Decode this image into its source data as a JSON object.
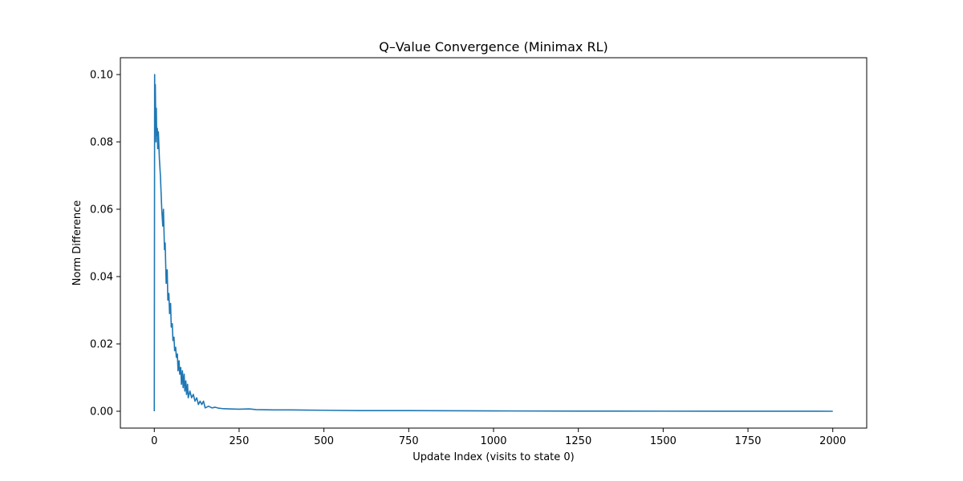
{
  "chart_data": {
    "type": "line",
    "title": "Q–Value Convergence (Minimax RL)",
    "xlabel": "Update Index (visits to state 0)",
    "ylabel": "Norm Difference",
    "xlim": [
      -100,
      2100
    ],
    "ylim": [
      -0.005,
      0.105
    ],
    "xticks": [
      0,
      250,
      500,
      750,
      1000,
      1250,
      1500,
      1750,
      2000
    ],
    "yticks": [
      0.0,
      0.02,
      0.04,
      0.06,
      0.08,
      0.1
    ],
    "ytick_labels": [
      "0.00",
      "0.02",
      "0.04",
      "0.06",
      "0.08",
      "0.10"
    ],
    "grid": false,
    "series": [
      {
        "color": "#1f77b4",
        "x": [
          0,
          1,
          2,
          3,
          5,
          6,
          7,
          9,
          10,
          12,
          15,
          18,
          20,
          22,
          25,
          27,
          30,
          32,
          35,
          38,
          40,
          43,
          45,
          48,
          50,
          53,
          55,
          58,
          60,
          63,
          65,
          68,
          70,
          73,
          75,
          78,
          80,
          83,
          85,
          88,
          90,
          93,
          95,
          98,
          100,
          105,
          110,
          115,
          120,
          125,
          130,
          135,
          140,
          145,
          150,
          160,
          170,
          180,
          190,
          200,
          220,
          250,
          280,
          300,
          350,
          400,
          500,
          600,
          750,
          1000,
          1250,
          1500,
          1750,
          2000
        ],
        "y": [
          0.0,
          0.1,
          0.085,
          0.097,
          0.08,
          0.09,
          0.082,
          0.084,
          0.078,
          0.083,
          0.075,
          0.07,
          0.065,
          0.06,
          0.055,
          0.06,
          0.048,
          0.05,
          0.038,
          0.042,
          0.033,
          0.035,
          0.029,
          0.032,
          0.025,
          0.026,
          0.021,
          0.022,
          0.018,
          0.019,
          0.016,
          0.017,
          0.012,
          0.015,
          0.011,
          0.013,
          0.008,
          0.012,
          0.007,
          0.011,
          0.006,
          0.009,
          0.005,
          0.008,
          0.004,
          0.006,
          0.004,
          0.005,
          0.003,
          0.004,
          0.002,
          0.003,
          0.002,
          0.003,
          0.001,
          0.0015,
          0.001,
          0.0012,
          0.0009,
          0.0008,
          0.0007,
          0.0006,
          0.0007,
          0.0005,
          0.0004,
          0.0004,
          0.0003,
          0.0002,
          0.0002,
          0.0001,
          5e-05,
          3e-05,
          2e-05,
          0.0
        ]
      }
    ]
  }
}
